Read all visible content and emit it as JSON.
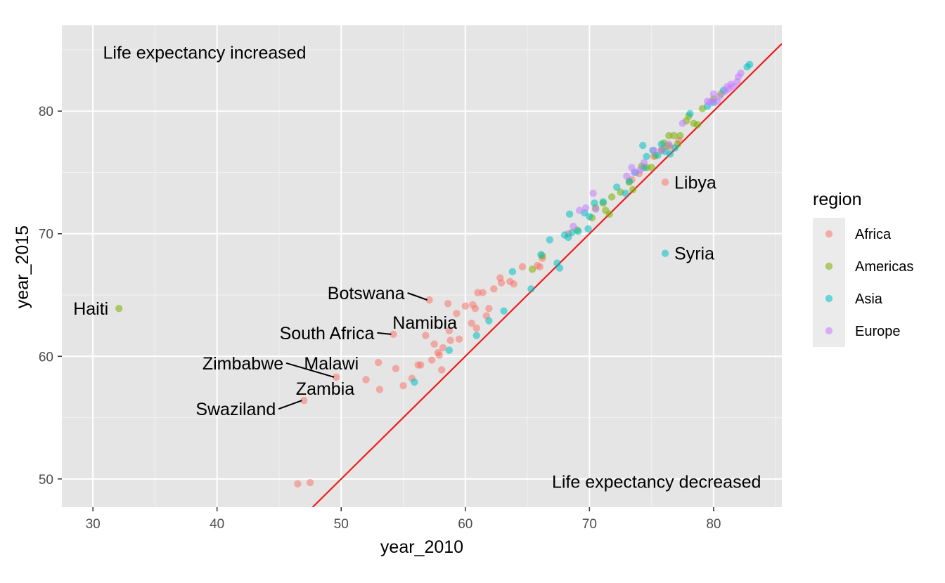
{
  "chart_data": {
    "type": "scatter",
    "xlabel": "year_2010",
    "ylabel": "year_2015",
    "xlim": [
      27.5,
      85.5
    ],
    "ylim": [
      47.7,
      87
    ],
    "x_ticks": [
      30,
      40,
      50,
      60,
      70,
      80
    ],
    "y_ticks": [
      50,
      60,
      70,
      80
    ],
    "grid": true,
    "reference_line": {
      "type": "y = x",
      "color": "#ee1c1c"
    },
    "legend": {
      "title": "region",
      "position": "right",
      "entries": [
        {
          "name": "Africa",
          "color": "#F8766D"
        },
        {
          "name": "Americas",
          "color": "#7CAE00"
        },
        {
          "name": "Asia",
          "color": "#00BFC4"
        },
        {
          "name": "Europe",
          "color": "#C77CFF"
        }
      ]
    },
    "annotations": [
      {
        "text": "Life expectancy increased",
        "x": 39,
        "y": 84.8
      },
      {
        "text": "Life expectancy decreased",
        "x": 75.4,
        "y": 49.8
      }
    ],
    "series": [
      {
        "name": "Africa",
        "color": "#F8766D",
        "points": [
          [
            46.5,
            49.6
          ],
          [
            47.5,
            49.7
          ],
          [
            47,
            56.4
          ],
          [
            49.6,
            58.3
          ],
          [
            52,
            58.1
          ],
          [
            53.1,
            57.3
          ],
          [
            53,
            59.5
          ],
          [
            54.2,
            61.8
          ],
          [
            54.4,
            59
          ],
          [
            55,
            57.6
          ],
          [
            55.7,
            58.2
          ],
          [
            56.2,
            59.3
          ],
          [
            56.4,
            59.3
          ],
          [
            56.8,
            61.7
          ],
          [
            57.1,
            64.6
          ],
          [
            57.3,
            59.7
          ],
          [
            57.5,
            61
          ],
          [
            57.8,
            60.3
          ],
          [
            57.9,
            60.1
          ],
          [
            58.1,
            58.9
          ],
          [
            58.2,
            60.7
          ],
          [
            58.6,
            64.3
          ],
          [
            58.7,
            62.1
          ],
          [
            58.8,
            61.3
          ],
          [
            59.3,
            63.5
          ],
          [
            59.5,
            61.4
          ],
          [
            60,
            64.1
          ],
          [
            60.5,
            62.7
          ],
          [
            60.6,
            64.2
          ],
          [
            60.8,
            63.9
          ],
          [
            60.9,
            62.3
          ],
          [
            61,
            65.2
          ],
          [
            61.4,
            65.2
          ],
          [
            61.7,
            63.3
          ],
          [
            61.9,
            63.9
          ],
          [
            62.3,
            65.5
          ],
          [
            62.8,
            66.4
          ],
          [
            62.9,
            66
          ],
          [
            63.6,
            66.1
          ],
          [
            63.9,
            65.9
          ],
          [
            64.6,
            67.3
          ],
          [
            65.8,
            67.4
          ],
          [
            66,
            67.3
          ],
          [
            66.2,
            68
          ],
          [
            68.3,
            70
          ],
          [
            73.4,
            74.4
          ],
          [
            74,
            74.9
          ],
          [
            75.2,
            76.3
          ],
          [
            75.9,
            76.9
          ],
          [
            76.5,
            77.1
          ],
          [
            77.2,
            77.6
          ],
          [
            76.1,
            74.2
          ]
        ],
        "labels": [
          {
            "text": "Swaziland",
            "index": 2
          },
          {
            "text": "Malawi",
            "index": 3
          },
          {
            "text": "Zimbabwe",
            "index": 3
          },
          {
            "text": "Zambia",
            "index": 3
          },
          {
            "text": "South Africa",
            "index": 7
          },
          {
            "text": "Botswana",
            "index": 14
          },
          {
            "text": "Namibia",
            "index": 20
          },
          {
            "text": "Libya",
            "index": 51
          }
        ]
      },
      {
        "name": "Americas",
        "color": "#7CAE00",
        "points": [
          [
            32.1,
            63.9
          ],
          [
            65.4,
            67.1
          ],
          [
            66.2,
            68.2
          ],
          [
            69,
            70.3
          ],
          [
            70.2,
            71.3
          ],
          [
            70.5,
            72.1
          ],
          [
            71.1,
            72.5
          ],
          [
            71.3,
            71.9
          ],
          [
            71.6,
            71.6
          ],
          [
            71.8,
            73
          ],
          [
            72.5,
            73.4
          ],
          [
            73.2,
            74.2
          ],
          [
            73.5,
            73.6
          ],
          [
            74.2,
            75.5
          ],
          [
            74.6,
            75.4
          ],
          [
            75,
            75.4
          ],
          [
            75.3,
            76.4
          ],
          [
            75.8,
            76.8
          ],
          [
            76,
            77.4
          ],
          [
            76.3,
            77.2
          ],
          [
            76.4,
            78
          ],
          [
            76.8,
            78
          ],
          [
            77.1,
            77.3
          ],
          [
            77.3,
            78
          ],
          [
            77.8,
            79.2
          ],
          [
            78,
            79.6
          ],
          [
            78.4,
            79
          ],
          [
            78.7,
            78.9
          ],
          [
            79.1,
            80.2
          ],
          [
            80,
            81
          ],
          [
            80.6,
            81.4
          ]
        ],
        "labels": [
          {
            "text": "Haiti",
            "index": 0
          }
        ]
      },
      {
        "name": "Asia",
        "color": "#00BFC4",
        "points": [
          [
            55.9,
            57.9
          ],
          [
            58.7,
            60.5
          ],
          [
            60.9,
            61.7
          ],
          [
            61.9,
            62.9
          ],
          [
            63.1,
            63.7
          ],
          [
            63.8,
            66.9
          ],
          [
            65.3,
            65.5
          ],
          [
            66.1,
            68.3
          ],
          [
            66.8,
            69.5
          ],
          [
            67.4,
            67.6
          ],
          [
            67.6,
            67.2
          ],
          [
            68,
            69.9
          ],
          [
            68.3,
            69.7
          ],
          [
            68.4,
            71.6
          ],
          [
            68.6,
            70.1
          ],
          [
            69.1,
            70.2
          ],
          [
            69.6,
            71.7
          ],
          [
            69.9,
            70.4
          ],
          [
            70,
            71.4
          ],
          [
            70.4,
            72.5
          ],
          [
            71.1,
            72.6
          ],
          [
            72.2,
            73.8
          ],
          [
            72.9,
            73.3
          ],
          [
            73.2,
            74.3
          ],
          [
            73.7,
            75
          ],
          [
            74.3,
            77.2
          ],
          [
            74.4,
            75.4
          ],
          [
            74.6,
            76.3
          ],
          [
            75.1,
            76.8
          ],
          [
            75.5,
            76.4
          ],
          [
            75.8,
            77.3
          ],
          [
            76.1,
            76.7
          ],
          [
            76.5,
            76.5
          ],
          [
            76.9,
            77
          ],
          [
            78.1,
            79.8
          ],
          [
            79.5,
            80.4
          ],
          [
            80,
            80.7
          ],
          [
            80.8,
            81.7
          ],
          [
            82.7,
            83.6
          ],
          [
            82.9,
            83.8
          ],
          [
            76.1,
            68.4
          ]
        ],
        "labels": [
          {
            "text": "Syria",
            "index": 40
          }
        ]
      },
      {
        "name": "Europe",
        "color": "#C77CFF",
        "points": [
          [
            68.7,
            70.6
          ],
          [
            69.2,
            71.9
          ],
          [
            69.7,
            72.1
          ],
          [
            70.3,
            73.3
          ],
          [
            70.5,
            72
          ],
          [
            73,
            74.7
          ],
          [
            73.4,
            75.4
          ],
          [
            73.6,
            75
          ],
          [
            74.1,
            75.2
          ],
          [
            74.4,
            75.8
          ],
          [
            75.2,
            76.8
          ],
          [
            75.8,
            76.8
          ],
          [
            76.4,
            77.3
          ],
          [
            77.5,
            79
          ],
          [
            79.5,
            80.8
          ],
          [
            79.9,
            80.8
          ],
          [
            80,
            81.4
          ],
          [
            80.3,
            80.8
          ],
          [
            80.5,
            81.2
          ],
          [
            80.9,
            81.6
          ],
          [
            81.2,
            81.8
          ],
          [
            81.4,
            82.2
          ],
          [
            81.6,
            82
          ],
          [
            81.9,
            82.4
          ],
          [
            82.2,
            83.1
          ],
          [
            82,
            82.8
          ],
          [
            79.7,
            80.7
          ],
          [
            81.1,
            82
          ]
        ],
        "labels": []
      }
    ]
  }
}
